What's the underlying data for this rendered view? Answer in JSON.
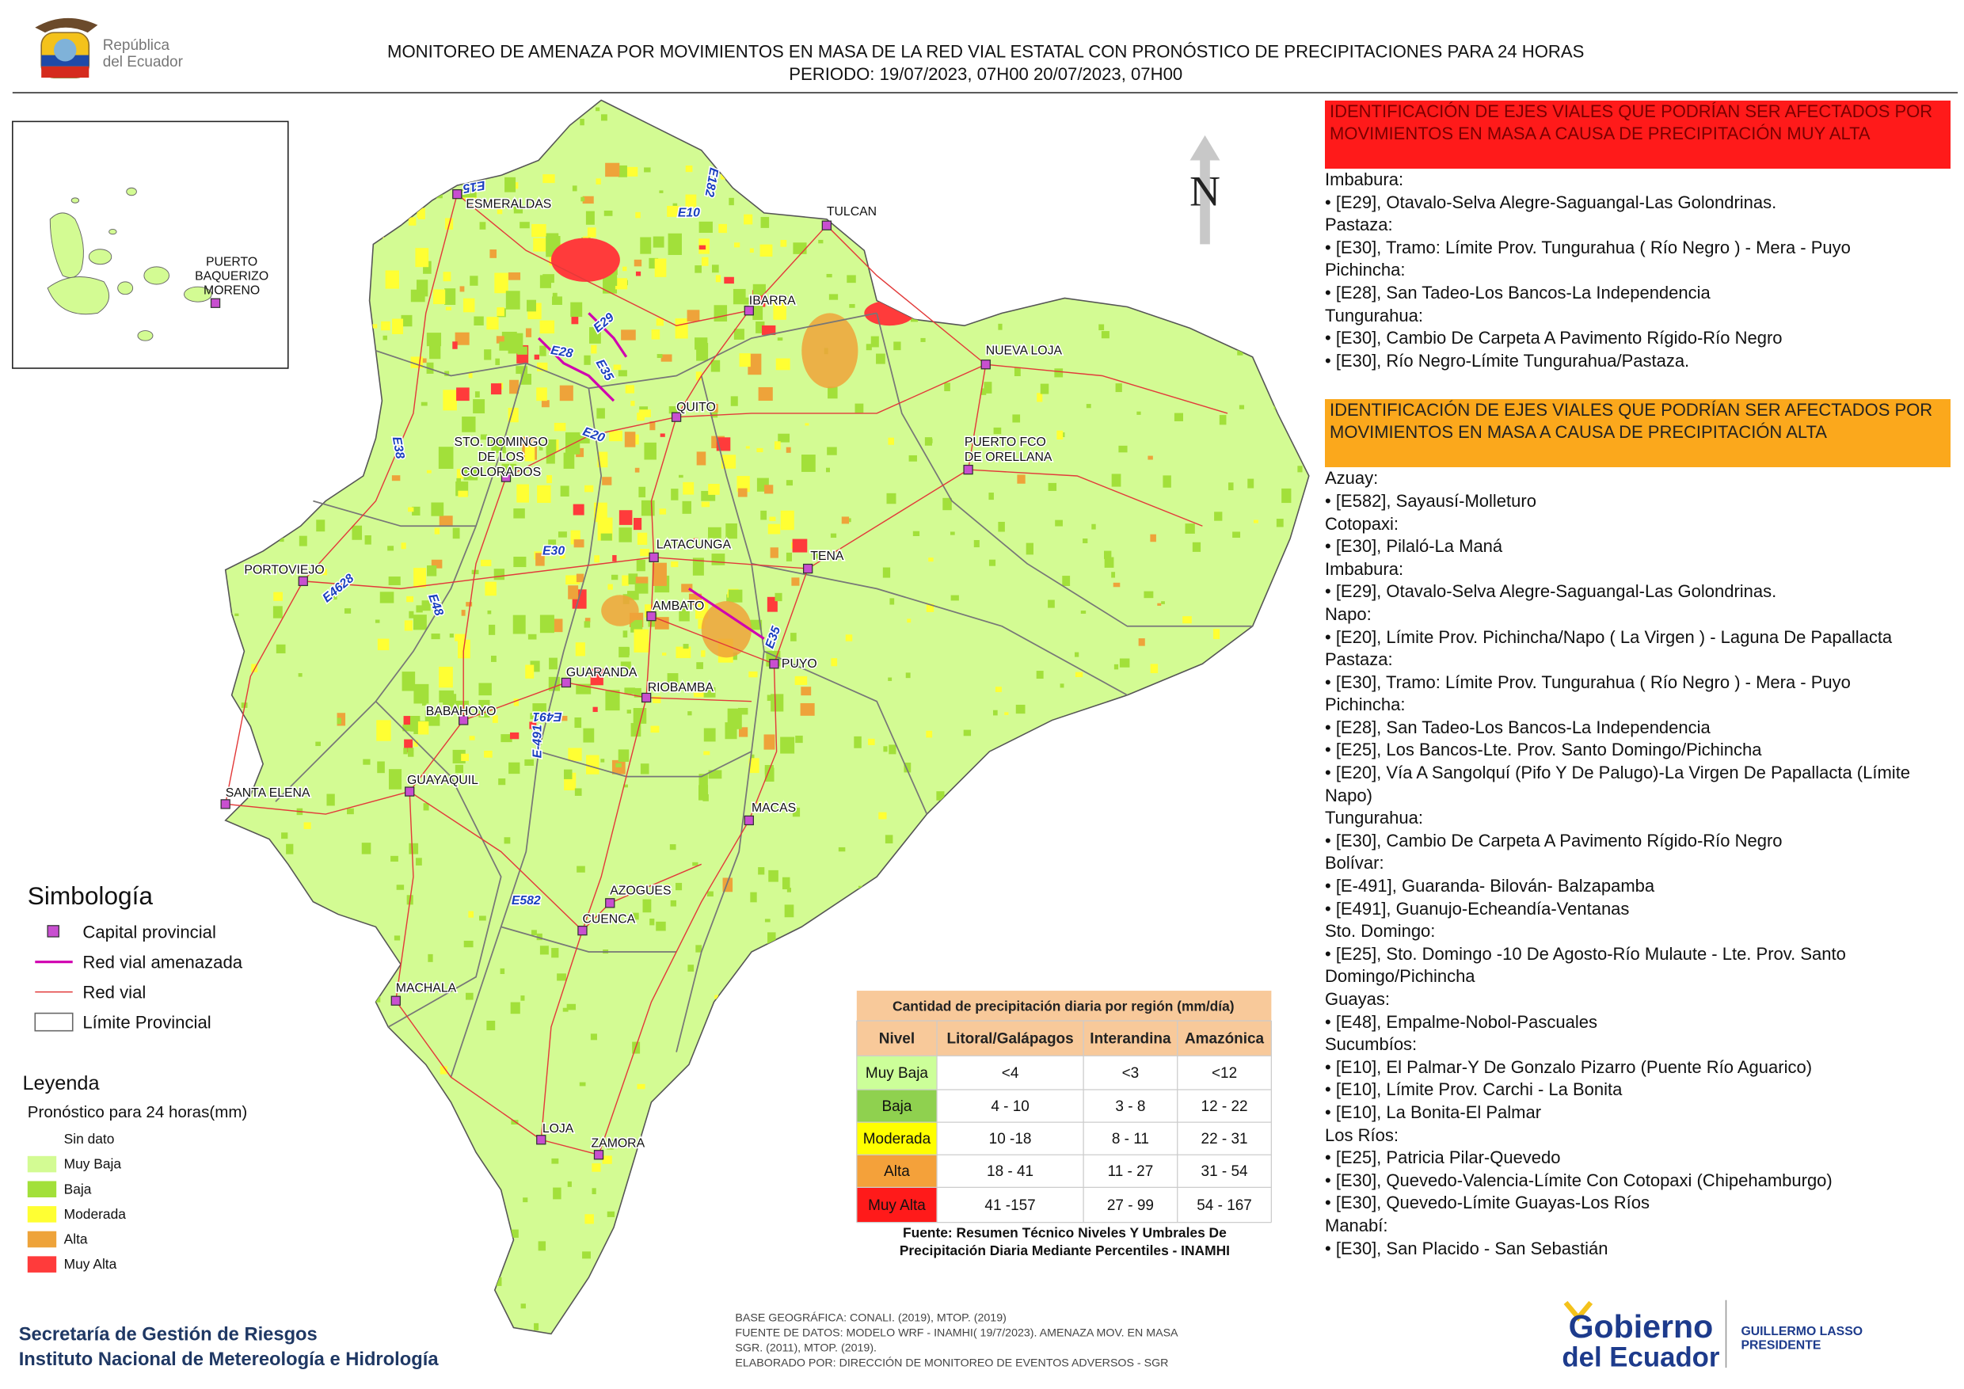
{
  "header": {
    "logo_lines": [
      "República",
      "del Ecuador"
    ],
    "title": "MONITOREO DE AMENAZA POR MOVIMIENTOS EN MASA DE LA RED VIAL  ESTATAL  CON PRONÓSTICO  DE  PRECIPITACIONES PARA 24 HORAS",
    "period": "PERIODO: 19/07/2023, 07H00 20/07/2023, 07H00"
  },
  "map": {
    "north": "N",
    "cities": [
      [
        "ESMERALDAS"
      ],
      [
        "TULCAN"
      ],
      [
        "IBARRA"
      ],
      [
        "NUEVA LOJA"
      ],
      [
        "QUITO"
      ],
      [
        "PUERTO FCO",
        "DE ORELLANA"
      ],
      [
        "STO. DOMINGO",
        "DE LOS",
        "COLORADOS"
      ],
      [
        "LATACUNGA"
      ],
      [
        "TENA"
      ],
      [
        "PORTOVIEJO"
      ],
      [
        "AMBATO"
      ],
      [
        "PUYO"
      ],
      [
        "GUARANDA"
      ],
      [
        "RIOBAMBA"
      ],
      [
        "BABAHOYO"
      ],
      [
        "GUAYAQUIL"
      ],
      [
        "SANTA ELENA"
      ],
      [
        "MACAS"
      ],
      [
        "AZOGUES"
      ],
      [
        "CUENCA"
      ],
      [
        "MACHALA"
      ],
      [
        "LOJA"
      ],
      [
        "ZAMORA"
      ]
    ],
    "inset_city": [
      "PUERTO",
      "BAQUERIZO",
      "MORENO"
    ],
    "road_labels": [
      "E15",
      "E182",
      "E10",
      "E29",
      "E28",
      "E35",
      "E20",
      "E38",
      "E30",
      "E4628",
      "E48",
      "E491",
      "E-491",
      "E35",
      "E582"
    ]
  },
  "symbology": {
    "title": "Simbología",
    "items": [
      "Capital provincial",
      "Red vial amenazada",
      "Red vial",
      "Límite Provincial"
    ]
  },
  "legend": {
    "title": "Leyenda",
    "subtitle": "Pronóstico para 24 horas(mm)",
    "items": [
      {
        "label": "Sin dato",
        "color": "#ffffff"
      },
      {
        "label": "Muy Baja",
        "color": "#d3fb93"
      },
      {
        "label": "Baja",
        "color": "#a2e03a"
      },
      {
        "label": "Moderada",
        "color": "#ffff33"
      },
      {
        "label": "Alta",
        "color": "#eea33a"
      },
      {
        "label": "Muy Alta",
        "color": "#ff3b3b"
      }
    ]
  },
  "table": {
    "title": "Cantidad de precipitación diaria por región (mm/día)",
    "header": [
      "Nivel",
      "Litoral/Galápagos",
      "Interandina",
      "Amazónica"
    ],
    "rows": [
      [
        "Muy Baja",
        "<4",
        "<3",
        "<12"
      ],
      [
        "Baja",
        "4 - 10",
        "3 - 8",
        "12 - 22"
      ],
      [
        "Moderada",
        "10 -18",
        "8 - 11",
        "22 - 31"
      ],
      [
        "Alta",
        "18 - 41",
        "11 - 27",
        "31 - 54"
      ],
      [
        "Muy Alta",
        "41 -157",
        "27 - 99",
        "54 - 167"
      ]
    ],
    "row_colors": [
      "#ccff99",
      "#8fd14f",
      "#ffff00",
      "#f4a13a",
      "#ff1a1a"
    ],
    "source": [
      "Fuente: Resumen Técnico Niveles Y Umbrales De",
      "Precipitación Diaria Mediante Percentiles - INAMHI"
    ]
  },
  "panel": {
    "sections": [
      {
        "heading": "IDENTIFICACIÓN DE EJES VIALES QUE PODRÍAN SER AFECTADOS POR MOVIMIENTOS EN MASA A CAUSA DE PRECIPITACIÓN MUY ALTA",
        "color": "#ff1a1a",
        "groups": [
          {
            "province": "Imbabura:",
            "roads": [
              "• [E29], Otavalo-Selva Alegre-Saguangal-Las Golondrinas."
            ]
          },
          {
            "province": "Pastaza:",
            "roads": [
              "• [E30], Tramo: Límite Prov. Tungurahua ( Río Negro ) - Mera - Puyo"
            ]
          },
          {
            "province": "Pichincha:",
            "roads": [
              "• [E28], San Tadeo-Los Bancos-La Independencia"
            ]
          },
          {
            "province": "Tungurahua:",
            "roads": [
              "• [E30], Cambio De Carpeta A Pavimento Rígido-Río Negro",
              "• [E30], Río Negro-Límite Tungurahua/Pastaza."
            ]
          }
        ]
      },
      {
        "heading": "IDENTIFICACIÓN DE EJES VIALES QUE PODRÍAN SER AFECTADOS POR MOVIMIENTOS EN MASA A CAUSA DE PRECIPITACIÓN  ALTA",
        "color": "#fba81c",
        "groups": [
          {
            "province": "Azuay:",
            "roads": [
              "• [E582], Sayausí-Molleturo"
            ]
          },
          {
            "province": "Cotopaxi:",
            "roads": [
              "• [E30], Pilaló-La Maná"
            ]
          },
          {
            "province": "Imbabura:",
            "roads": [
              "• [E29], Otavalo-Selva Alegre-Saguangal-Las Golondrinas."
            ]
          },
          {
            "province": "Napo:",
            "roads": [
              "• [E20], Límite Prov. Pichincha/Napo ( La Virgen ) - Laguna De Papallacta"
            ]
          },
          {
            "province": "Pastaza:",
            "roads": [
              "• [E30], Tramo: Límite Prov. Tungurahua ( Río Negro ) - Mera - Puyo"
            ]
          },
          {
            "province": "Pichincha:",
            "roads": [
              "• [E28], San Tadeo-Los Bancos-La Independencia",
              "• [E25], Los Bancos-Lte. Prov. Santo Domingo/Pichincha",
              "• [E20], Vía A Sangolquí (Pifo Y De Palugo)-La Virgen De Papallacta (Límite Napo)"
            ]
          },
          {
            "province": "Tungurahua:",
            "roads": [
              "• [E30], Cambio De Carpeta A Pavimento Rígido-Río Negro"
            ]
          },
          {
            "province": "Bolívar:",
            "roads": [
              "• [E-491], Guaranda- Bilován- Balzapamba",
              "• [E491], Guanujo-Echeandía-Ventanas"
            ]
          },
          {
            "province": "Sto. Domingo:",
            "roads": [
              "• [E25], Sto. Domingo -10 De Agosto-Río Mulaute - Lte. Prov. Santo Domingo/Pichincha"
            ]
          },
          {
            "province": "Guayas:",
            "roads": [
              "• [E48], Empalme-Nobol-Pascuales"
            ]
          },
          {
            "province": "Sucumbíos:",
            "roads": [
              "• [E10], El Palmar-Y De Gonzalo Pizarro (Puente Río Aguarico)",
              "• [E10], Límite Prov. Carchi - La Bonita",
              "• [E10], La Bonita-El Palmar"
            ]
          },
          {
            "province": "Los Ríos:",
            "roads": [
              "• [E25], Patricia Pilar-Quevedo",
              "• [E30], Quevedo-Valencia-Límite Con Cotopaxi (Chipehamburgo)",
              "• [E30], Quevedo-Límite Guayas-Los Ríos"
            ]
          },
          {
            "province": "Manabí:",
            "roads": [
              "• [E30], San Placido - San Sebastián"
            ]
          }
        ]
      }
    ]
  },
  "footer": {
    "org": [
      "Secretaría de Gestión de Riesgos",
      "Instituto Nacional de Metereología e Hidrología"
    ],
    "credits": [
      "BASE GEOGRÁFICA: CONALI. (2019), MTOP. (2019)",
      "FUENTE DE DATOS: MODELO WRF - INAMHI( 19/7/2023).  AMENAZA MOV. EN MASA",
      "SGR. (2011), MTOP. (2019).",
      "ELABORADO POR: DIRECCIÓN DE MONITOREO DE EVENTOS ADVERSOS - SGR"
    ],
    "gov": [
      "Gobierno",
      "del Ecuador"
    ],
    "president": [
      "GUILLERMO LASSO",
      "PRESIDENTE"
    ]
  }
}
